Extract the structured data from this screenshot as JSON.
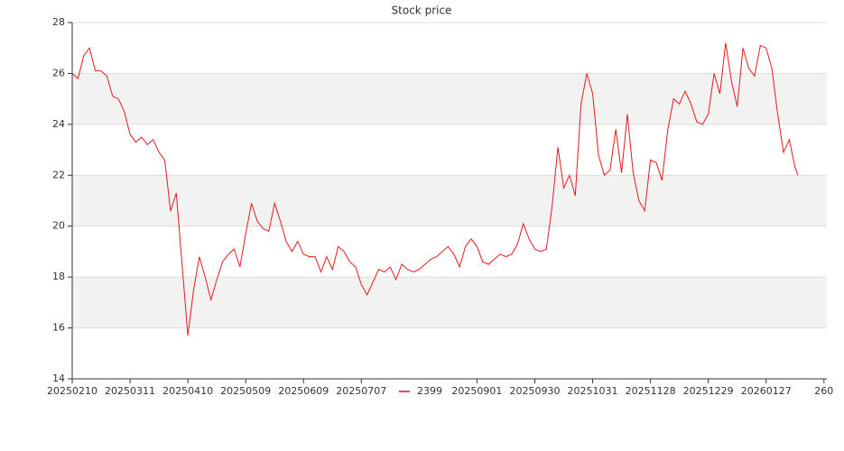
{
  "chart_data": {
    "type": "line",
    "title": "Stock price",
    "x": [
      0,
      2,
      4,
      6,
      8,
      10,
      12,
      14,
      16,
      18,
      20,
      22,
      24,
      26,
      28,
      30,
      32,
      34,
      36,
      38,
      40,
      42,
      44,
      46,
      48,
      50,
      52,
      54,
      56,
      58,
      60,
      62,
      64,
      66,
      68,
      70,
      72,
      74,
      76,
      78,
      80,
      82,
      84,
      86,
      88,
      90,
      92,
      94,
      96,
      98,
      100,
      102,
      104,
      106,
      108,
      110,
      112,
      114,
      116,
      118,
      120,
      122,
      124,
      126,
      128,
      130,
      132,
      134,
      136,
      138,
      140,
      142,
      144,
      146,
      148,
      150,
      152,
      154,
      156,
      158,
      160,
      162,
      164,
      166,
      168,
      170,
      172,
      174,
      176,
      178,
      180,
      182,
      184,
      186,
      188,
      190,
      192,
      194,
      196,
      198,
      200,
      202,
      204,
      206,
      208,
      210,
      212,
      214,
      216,
      218,
      220,
      222,
      224,
      226,
      228,
      230,
      232,
      234,
      236,
      238,
      240,
      242,
      244,
      246,
      248,
      250,
      251
    ],
    "series": [
      {
        "name": "2399",
        "color": "#e41a1c",
        "values": [
          26.0,
          25.8,
          26.7,
          27.0,
          26.1,
          26.1,
          25.9,
          25.1,
          25.0,
          24.5,
          23.6,
          23.3,
          23.5,
          23.2,
          23.4,
          22.9,
          22.6,
          20.6,
          21.3,
          18.5,
          15.7,
          17.5,
          18.8,
          18.0,
          17.1,
          17.9,
          18.6,
          18.9,
          19.1,
          18.4,
          19.7,
          20.9,
          20.2,
          19.9,
          19.8,
          20.9,
          20.2,
          19.4,
          19.0,
          19.4,
          18.9,
          18.8,
          18.8,
          18.2,
          18.8,
          18.3,
          19.2,
          19.0,
          18.6,
          18.4,
          17.7,
          17.3,
          17.8,
          18.3,
          18.2,
          18.4,
          17.9,
          18.5,
          18.3,
          18.2,
          18.3,
          18.5,
          18.7,
          18.8,
          19.0,
          19.2,
          18.9,
          18.4,
          19.2,
          19.5,
          19.2,
          18.6,
          18.5,
          18.7,
          18.9,
          18.8,
          18.9,
          19.3,
          20.1,
          19.5,
          19.1,
          19.0,
          19.1,
          20.8,
          23.1,
          21.5,
          22.0,
          21.2,
          24.8,
          26.0,
          25.2,
          22.8,
          22.0,
          22.2,
          23.8,
          22.1,
          24.4,
          22.1,
          21.0,
          20.6,
          22.6,
          22.5,
          21.8,
          23.8,
          25.0,
          24.8,
          25.3,
          24.8,
          24.1,
          24.0,
          24.4,
          26.0,
          25.2,
          27.2,
          25.7,
          24.7,
          27.0,
          26.2,
          25.9,
          27.1,
          27.0,
          26.2,
          24.4,
          22.9,
          23.4,
          22.3,
          22.0
        ]
      }
    ],
    "xlim": [
      0,
      261
    ],
    "xticks": [
      {
        "value": 0,
        "label": "20250210"
      },
      {
        "value": 20,
        "label": "20250311"
      },
      {
        "value": 40,
        "label": "20250410"
      },
      {
        "value": 60,
        "label": "20250509"
      },
      {
        "value": 80,
        "label": "20250609"
      },
      {
        "value": 100,
        "label": "20250707"
      },
      {
        "value": 140,
        "label": "20250901"
      },
      {
        "value": 160,
        "label": "20250930"
      },
      {
        "value": 180,
        "label": "20251031"
      },
      {
        "value": 200,
        "label": "20251128"
      },
      {
        "value": 220,
        "label": "20251229"
      },
      {
        "value": 240,
        "label": "20260127"
      },
      260
    ],
    "ylim": [
      14,
      28
    ],
    "yticks": [
      14,
      16,
      18,
      20,
      22,
      24,
      26,
      28
    ],
    "grid": true,
    "legend": "bottom"
  }
}
